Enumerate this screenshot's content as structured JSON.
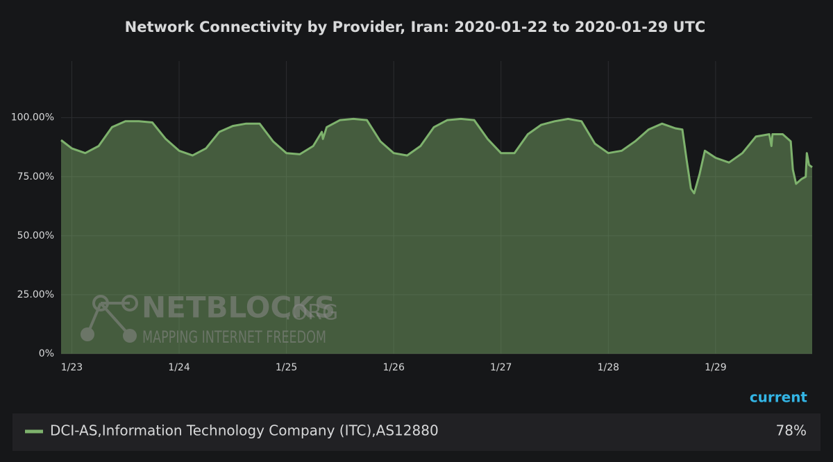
{
  "chart_data": {
    "type": "area",
    "title": "Network Connectivity by Provider, Iran: 2020-01-22 to 2020-01-29 UTC",
    "x": [
      22.9,
      23.0,
      23.125,
      23.25,
      23.375,
      23.5,
      23.625,
      23.75,
      23.875,
      24.0,
      24.125,
      24.25,
      24.375,
      24.5,
      24.625,
      24.75,
      24.875,
      25.0,
      25.125,
      25.25,
      25.33,
      25.34,
      25.375,
      25.5,
      25.625,
      25.75,
      25.875,
      26.0,
      26.125,
      26.25,
      26.375,
      26.5,
      26.625,
      26.75,
      26.875,
      27.0,
      27.125,
      27.25,
      27.375,
      27.5,
      27.625,
      27.75,
      27.875,
      28.0,
      28.125,
      28.25,
      28.375,
      28.5,
      28.625,
      28.69,
      28.73,
      28.77,
      28.8,
      28.85,
      28.9,
      29.0,
      29.125,
      29.25,
      29.375,
      29.5,
      29.52,
      29.53,
      29.625,
      29.7,
      29.72,
      29.75,
      29.8,
      29.84,
      29.85,
      29.87,
      29.9
    ],
    "series": [
      {
        "name": "DCI-AS,Information Technology Company (ITC),AS12880",
        "color": "#7eb26d",
        "values": [
          90.5,
          87,
          85,
          88,
          96,
          98.5,
          98.5,
          98,
          91,
          86,
          84,
          87,
          94,
          96.5,
          97.5,
          97.5,
          90,
          85,
          84.5,
          88,
          94,
          91,
          96,
          99,
          99.5,
          99,
          90,
          85,
          84,
          88,
          96,
          99,
          99.5,
          99,
          91,
          85,
          85,
          93,
          97,
          98.5,
          99.5,
          98.5,
          89,
          85,
          86,
          90,
          95,
          97.5,
          95.5,
          95,
          82,
          70,
          68,
          76,
          86,
          83,
          81,
          85,
          92,
          93,
          88,
          93,
          93,
          90,
          78,
          72,
          74,
          75,
          85,
          80,
          79
        ],
        "current": 78,
        "current_label": "78%"
      }
    ],
    "xlim": [
      22.9,
      29.9
    ],
    "xticks": [
      {
        "value": 23,
        "label": "1/23"
      },
      {
        "value": 24,
        "label": "1/24"
      },
      {
        "value": 25,
        "label": "1/25"
      },
      {
        "value": 26,
        "label": "1/26"
      },
      {
        "value": 27,
        "label": "1/27"
      },
      {
        "value": 28,
        "label": "1/28"
      },
      {
        "value": 29,
        "label": "1/29"
      }
    ],
    "ylim": [
      0,
      124
    ],
    "yticks": [
      {
        "value": 0,
        "label": "0%"
      },
      {
        "value": 25,
        "label": "25.00%"
      },
      {
        "value": 50,
        "label": "50.00%"
      },
      {
        "value": 75,
        "label": "75.00%"
      },
      {
        "value": 100,
        "label": "100.00%"
      }
    ],
    "grid": true,
    "legend_header": "current",
    "watermark": {
      "brand": "NETBLOCKS",
      "domain": ".ORG",
      "tagline": "MAPPING INTERNET FREEDOM"
    }
  }
}
